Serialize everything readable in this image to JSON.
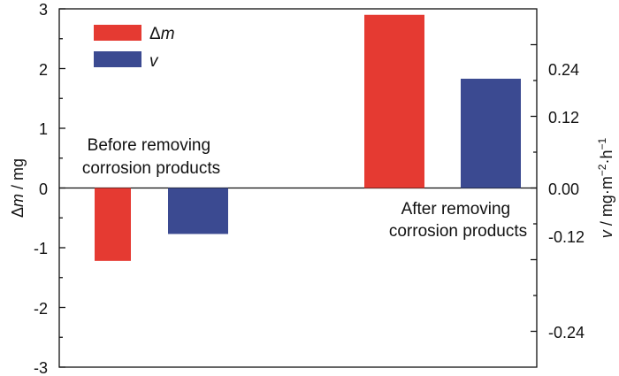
{
  "chart_data": {
    "type": "bar",
    "left_axis": {
      "label_symbol": "Δ",
      "label_var": "m",
      "label_unit": " / mg",
      "ylim": [
        -3,
        3
      ],
      "ticks": [
        "3",
        "2",
        "1",
        "0",
        "-1",
        "-2",
        "-3"
      ]
    },
    "right_axis": {
      "label_var": "v",
      "label_unit": " / mg·m",
      "label_exp1": "−2",
      "label_mid": "·h",
      "label_exp2": "−1",
      "ylim": [
        -0.3,
        0.3
      ],
      "ticks": [
        "0.24",
        "0.12",
        "0.00",
        "-0.12",
        "-0.24"
      ]
    },
    "series": [
      {
        "name": "Δm",
        "name_symbol": "Δ",
        "name_var": "m",
        "color": "#e53a32",
        "axis": "left",
        "values": [
          -1.22,
          2.9
        ]
      },
      {
        "name": "v",
        "name_var": "v",
        "color": "#3b4a91",
        "axis": "right",
        "values": [
          -0.077,
          0.183
        ]
      }
    ],
    "annotations": [
      {
        "lines": [
          "Before removing",
          "corrosion products"
        ]
      },
      {
        "lines": [
          "After removing",
          "corrosion products"
        ]
      }
    ],
    "grid": false,
    "legend_position": "top-left"
  }
}
